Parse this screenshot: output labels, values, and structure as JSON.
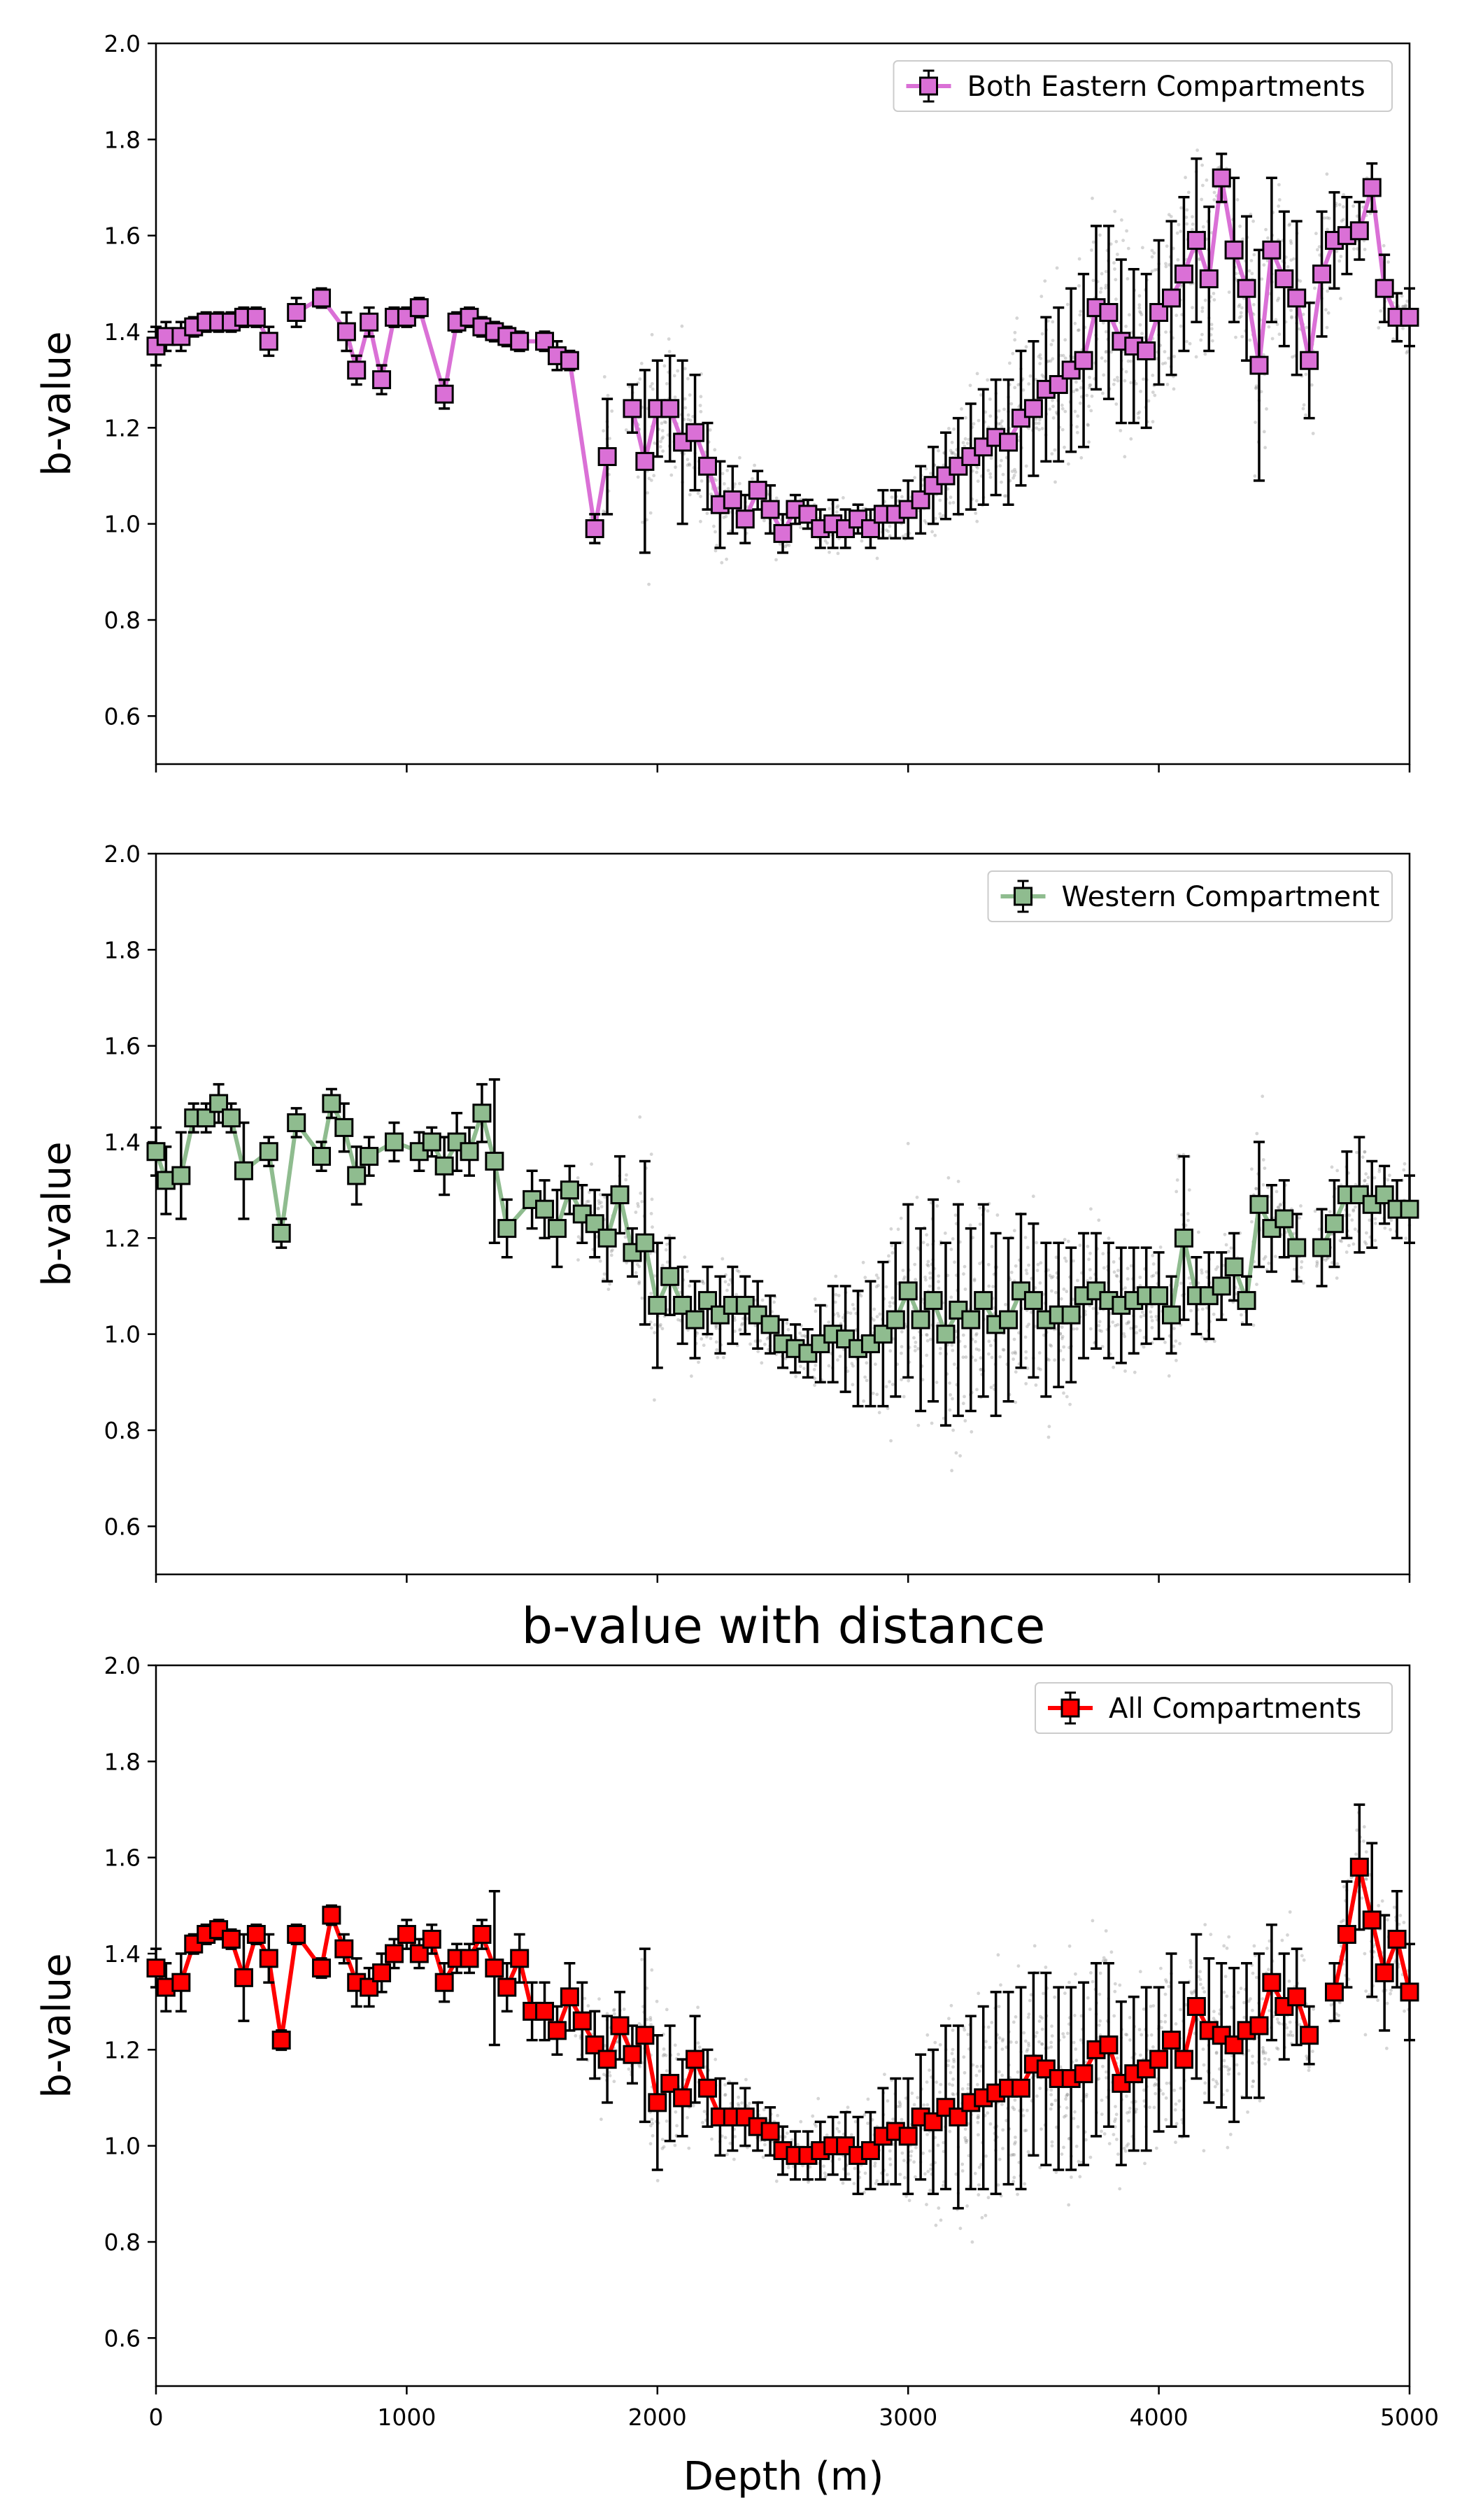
{
  "figure": {
    "title": "b-value with distance",
    "xlabel": "Depth (m)"
  },
  "chart_data": [
    {
      "type": "line",
      "title": "",
      "xlabel": "",
      "ylabel": "b-value",
      "xlim": [
        0,
        5000
      ],
      "ylim": [
        0.5,
        2.0
      ],
      "xticks": [
        "0",
        "1000",
        "2000",
        "3000",
        "4000",
        "5000"
      ],
      "yticks": [
        "0.6",
        "0.8",
        "1.0",
        "1.2",
        "1.4",
        "1.6",
        "1.8",
        "2.0"
      ],
      "grid": false,
      "legend": "top-right",
      "series": [
        {
          "name": "Both Eastern Compartments",
          "color": "#da70d6",
          "marker": "square",
          "x": [
            0,
            40,
            100,
            150,
            200,
            250,
            300,
            350,
            400,
            450,
            500,
            560,
            660,
            760,
            800,
            850,
            900,
            950,
            1000,
            1050,
            1150,
            1200,
            1250,
            1300,
            1350,
            1400,
            1450,
            1550,
            1600,
            1650,
            1750,
            1800,
            1850,
            1900,
            1950,
            2000,
            2050,
            2100,
            2150,
            2200,
            2250,
            2300,
            2350,
            2400,
            2450,
            2500,
            2550,
            2600,
            2650,
            2700,
            2750,
            2800,
            2850,
            2900,
            2950,
            3000,
            3050,
            3100,
            3150,
            3200,
            3250,
            3300,
            3350,
            3400,
            3450,
            3500,
            3550,
            3600,
            3650,
            3700,
            3750,
            3800,
            3850,
            3900,
            3950,
            4000,
            4050,
            4100,
            4150,
            4200,
            4250,
            4300,
            4350,
            4400,
            4450,
            4500,
            4550,
            4600,
            4650,
            4700,
            4750,
            4800,
            4850,
            4900,
            4950,
            5000
          ],
          "y": [
            1.37,
            1.39,
            1.39,
            1.41,
            1.42,
            1.42,
            1.42,
            1.43,
            1.43,
            1.38,
            null,
            1.44,
            1.47,
            1.4,
            1.32,
            1.42,
            1.3,
            1.43,
            1.43,
            1.45,
            1.27,
            1.42,
            1.43,
            1.41,
            1.4,
            1.39,
            1.38,
            1.38,
            1.35,
            1.34,
            0.99,
            1.14,
            null,
            1.24,
            1.13,
            1.24,
            1.24,
            1.17,
            1.19,
            1.12,
            1.04,
            1.05,
            1.01,
            1.07,
            1.03,
            0.98,
            1.03,
            1.02,
            0.99,
            1.0,
            0.99,
            1.01,
            0.99,
            1.02,
            1.02,
            1.03,
            1.05,
            1.08,
            1.1,
            1.12,
            1.14,
            1.16,
            1.18,
            1.17,
            1.22,
            1.24,
            1.28,
            1.29,
            1.32,
            1.34,
            1.45,
            1.44,
            1.38,
            1.37,
            1.36,
            1.44,
            1.47,
            1.52,
            1.59,
            1.51,
            1.72,
            1.57,
            1.49,
            1.33,
            1.57,
            1.51,
            1.47,
            1.34,
            1.52,
            1.59,
            1.6,
            1.61,
            1.7,
            1.49,
            1.43,
            1.43
          ],
          "yerr": [
            0.04,
            0.03,
            0.03,
            0.02,
            0.02,
            0.02,
            0.02,
            0.02,
            0.02,
            0.03,
            null,
            0.03,
            0.02,
            0.04,
            0.03,
            0.03,
            0.03,
            0.02,
            0.02,
            0.02,
            0.03,
            0.02,
            0.02,
            0.02,
            0.02,
            0.02,
            0.02,
            0.02,
            0.03,
            0.02,
            0.03,
            0.12,
            null,
            0.05,
            0.19,
            0.1,
            0.11,
            0.17,
            0.12,
            0.09,
            0.09,
            0.07,
            0.05,
            0.04,
            0.05,
            0.04,
            0.03,
            0.03,
            0.04,
            0.05,
            0.04,
            0.03,
            0.04,
            0.05,
            0.05,
            0.06,
            0.07,
            0.08,
            0.09,
            0.1,
            0.11,
            0.12,
            0.12,
            0.13,
            0.14,
            0.14,
            0.15,
            0.16,
            0.17,
            0.18,
            0.17,
            0.18,
            0.17,
            0.16,
            0.16,
            0.15,
            0.16,
            0.16,
            0.17,
            0.15,
            0.05,
            0.15,
            0.15,
            0.24,
            0.15,
            0.14,
            0.16,
            0.12,
            0.13,
            0.1,
            0.08,
            0.06,
            0.05,
            0.07,
            0.05,
            0.06
          ]
        }
      ]
    },
    {
      "type": "line",
      "title": "",
      "xlabel": "",
      "ylabel": "b-value",
      "xlim": [
        0,
        5000
      ],
      "ylim": [
        0.5,
        2.0
      ],
      "xticks": [
        "0",
        "1000",
        "2000",
        "3000",
        "4000",
        "5000"
      ],
      "yticks": [
        "0.6",
        "0.8",
        "1.0",
        "1.2",
        "1.4",
        "1.6",
        "1.8",
        "2.0"
      ],
      "grid": false,
      "legend": "top-right",
      "series": [
        {
          "name": "Western Compartment",
          "color": "#8fbc8f",
          "marker": "square",
          "x": [
            0,
            40,
            100,
            150,
            200,
            250,
            300,
            350,
            450,
            500,
            560,
            660,
            700,
            750,
            800,
            850,
            950,
            1050,
            1100,
            1150,
            1200,
            1250,
            1300,
            1350,
            1400,
            1500,
            1550,
            1600,
            1650,
            1700,
            1750,
            1800,
            1850,
            1900,
            1950,
            2000,
            2050,
            2100,
            2150,
            2200,
            2250,
            2300,
            2350,
            2400,
            2450,
            2500,
            2550,
            2600,
            2650,
            2700,
            2750,
            2800,
            2850,
            2900,
            2950,
            3000,
            3050,
            3100,
            3150,
            3200,
            3250,
            3300,
            3350,
            3400,
            3450,
            3500,
            3550,
            3600,
            3650,
            3700,
            3750,
            3800,
            3850,
            3900,
            3950,
            4000,
            4050,
            4100,
            4150,
            4200,
            4250,
            4300,
            4350,
            4400,
            4450,
            4500,
            4550,
            4600,
            4650,
            4700,
            4750,
            4800,
            4850,
            4900,
            4950,
            5000
          ],
          "y": [
            1.38,
            1.32,
            1.33,
            1.45,
            1.45,
            1.48,
            1.45,
            1.34,
            1.38,
            1.21,
            1.44,
            1.37,
            1.48,
            1.43,
            1.33,
            1.37,
            1.4,
            1.38,
            1.4,
            1.35,
            1.4,
            1.38,
            1.46,
            1.36,
            1.22,
            1.28,
            1.26,
            1.22,
            1.3,
            1.25,
            1.23,
            1.2,
            1.29,
            1.17,
            1.19,
            1.06,
            1.12,
            1.06,
            1.03,
            1.07,
            1.04,
            1.06,
            1.06,
            1.04,
            1.02,
            0.98,
            0.97,
            0.96,
            0.98,
            1.0,
            0.99,
            0.97,
            0.98,
            1.0,
            1.03,
            1.09,
            1.03,
            1.07,
            1.0,
            1.05,
            1.03,
            1.07,
            1.02,
            1.03,
            1.09,
            1.07,
            1.03,
            1.04,
            1.04,
            1.08,
            1.09,
            1.07,
            1.06,
            1.07,
            1.08,
            1.08,
            1.04,
            1.2,
            1.08,
            1.08,
            1.1,
            1.14,
            1.07,
            1.27,
            1.22,
            1.24,
            1.18,
            null,
            1.18,
            1.23,
            1.29,
            1.29,
            1.27,
            1.29,
            1.26,
            1.26
          ],
          "yerr": [
            0.05,
            0.07,
            0.09,
            0.03,
            0.03,
            0.04,
            0.03,
            0.1,
            0.03,
            0.03,
            0.03,
            0.03,
            0.03,
            0.05,
            0.06,
            0.04,
            0.04,
            0.04,
            0.03,
            0.06,
            0.06,
            0.05,
            0.06,
            0.17,
            0.06,
            0.06,
            0.06,
            0.08,
            0.05,
            0.06,
            0.07,
            0.09,
            0.08,
            0.05,
            0.17,
            0.13,
            0.08,
            0.08,
            0.08,
            0.07,
            0.08,
            0.08,
            0.06,
            0.07,
            0.06,
            0.05,
            0.05,
            0.05,
            0.08,
            0.1,
            0.11,
            0.12,
            0.13,
            0.15,
            0.16,
            0.18,
            0.19,
            0.21,
            0.19,
            0.22,
            0.19,
            0.2,
            0.19,
            0.17,
            0.16,
            0.16,
            0.16,
            0.15,
            0.14,
            0.13,
            0.12,
            0.12,
            0.12,
            0.11,
            0.1,
            0.09,
            0.08,
            0.17,
            0.08,
            0.09,
            0.07,
            0.07,
            0.05,
            0.13,
            0.09,
            0.08,
            0.07,
            null,
            0.08,
            0.09,
            0.09,
            0.12,
            0.09,
            0.06,
            0.06,
            0.07
          ]
        }
      ]
    },
    {
      "type": "line",
      "title": "",
      "xlabel": "Depth (m)",
      "ylabel": "b-value",
      "xlim": [
        0,
        5000
      ],
      "ylim": [
        0.5,
        2.0
      ],
      "xticks": [
        "0",
        "1000",
        "2000",
        "3000",
        "4000",
        "5000"
      ],
      "yticks": [
        "0.6",
        "0.8",
        "1.0",
        "1.2",
        "1.4",
        "1.6",
        "1.8",
        "2.0"
      ],
      "grid": false,
      "legend": "top-right",
      "series": [
        {
          "name": "All Compartments",
          "color": "#ff0000",
          "marker": "square",
          "x": [
            0,
            40,
            100,
            150,
            200,
            250,
            300,
            350,
            400,
            450,
            500,
            560,
            660,
            700,
            750,
            800,
            850,
            900,
            950,
            1000,
            1050,
            1100,
            1150,
            1200,
            1250,
            1300,
            1350,
            1400,
            1450,
            1500,
            1550,
            1600,
            1650,
            1700,
            1750,
            1800,
            1850,
            1900,
            1950,
            2000,
            2050,
            2100,
            2150,
            2200,
            2250,
            2300,
            2350,
            2400,
            2450,
            2500,
            2550,
            2600,
            2650,
            2700,
            2750,
            2800,
            2850,
            2900,
            2950,
            3000,
            3050,
            3100,
            3150,
            3200,
            3250,
            3300,
            3350,
            3400,
            3450,
            3500,
            3550,
            3600,
            3650,
            3700,
            3750,
            3800,
            3850,
            3900,
            3950,
            4000,
            4050,
            4100,
            4150,
            4200,
            4250,
            4300,
            4350,
            4400,
            4450,
            4500,
            4550,
            4600,
            4650,
            4700,
            4750,
            4800,
            4850,
            4900,
            4950,
            5000
          ],
          "y": [
            1.37,
            1.33,
            1.34,
            1.42,
            1.44,
            1.45,
            1.43,
            1.35,
            1.44,
            1.39,
            1.22,
            1.44,
            1.37,
            1.48,
            1.41,
            1.34,
            1.33,
            1.36,
            1.4,
            1.44,
            1.4,
            1.43,
            1.34,
            1.39,
            1.39,
            1.44,
            1.37,
            1.33,
            1.39,
            1.28,
            1.28,
            1.24,
            1.31,
            1.26,
            1.21,
            1.18,
            1.25,
            1.19,
            1.23,
            1.09,
            1.13,
            1.1,
            1.18,
            1.12,
            1.06,
            1.06,
            1.06,
            1.04,
            1.03,
            0.99,
            0.98,
            0.98,
            0.99,
            1.0,
            1.0,
            0.98,
            0.99,
            1.02,
            1.03,
            1.02,
            1.06,
            1.05,
            1.08,
            1.06,
            1.09,
            1.1,
            1.11,
            1.12,
            1.12,
            1.17,
            1.16,
            1.14,
            1.14,
            1.15,
            1.2,
            1.21,
            1.13,
            1.15,
            1.16,
            1.18,
            1.22,
            1.18,
            1.29,
            1.24,
            1.23,
            1.21,
            1.24,
            1.25,
            1.34,
            1.29,
            1.31,
            1.23,
            null,
            1.32,
            1.44,
            1.58,
            1.47,
            1.36,
            1.43,
            1.32
          ],
          "yerr": [
            0.04,
            0.05,
            0.06,
            0.02,
            0.02,
            0.02,
            0.02,
            0.09,
            0.02,
            0.05,
            0.02,
            0.02,
            0.02,
            0.02,
            0.03,
            0.05,
            0.04,
            0.04,
            0.03,
            0.03,
            0.03,
            0.03,
            0.04,
            0.03,
            0.03,
            0.03,
            0.16,
            0.05,
            0.05,
            0.06,
            0.06,
            0.05,
            0.07,
            0.08,
            0.07,
            0.09,
            0.07,
            0.06,
            0.18,
            0.14,
            0.12,
            0.08,
            0.09,
            0.08,
            0.08,
            0.07,
            0.06,
            0.05,
            0.05,
            0.05,
            0.05,
            0.05,
            0.06,
            0.06,
            0.07,
            0.08,
            0.08,
            0.1,
            0.11,
            0.12,
            0.13,
            0.15,
            0.17,
            0.19,
            0.18,
            0.19,
            0.21,
            0.2,
            0.21,
            0.19,
            0.2,
            0.19,
            0.19,
            0.19,
            0.18,
            0.17,
            0.17,
            0.16,
            0.17,
            0.15,
            0.18,
            0.16,
            0.15,
            0.15,
            0.15,
            0.16,
            0.14,
            0.15,
            0.12,
            0.11,
            0.1,
            0.06,
            null,
            0.06,
            0.11,
            0.13,
            0.16,
            0.12,
            0.1,
            0.1
          ]
        }
      ]
    }
  ]
}
